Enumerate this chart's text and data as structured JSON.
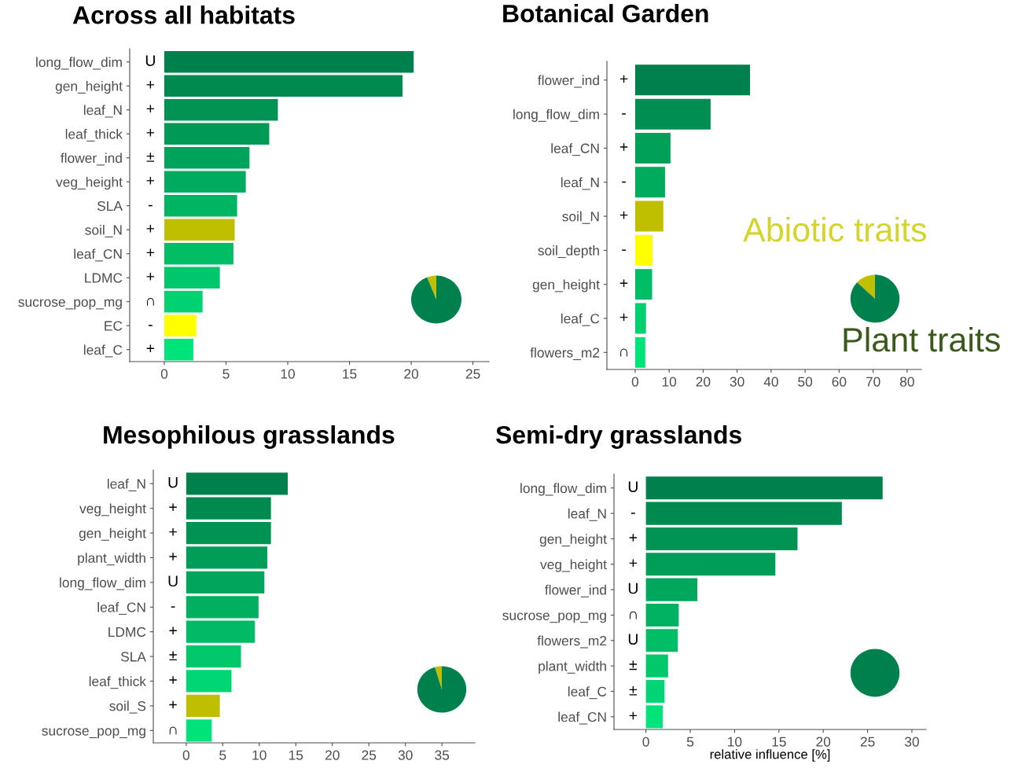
{
  "chart_data": [
    {
      "type": "bar",
      "orientation": "horizontal",
      "title": "Across all habitats",
      "categories": [
        "long_flow_dim",
        "gen_height",
        "leaf_N",
        "leaf_thick",
        "flower_ind",
        "veg_height",
        "SLA",
        "soil_N",
        "leaf_CN",
        "LDMC",
        "sucrose_pop_mg",
        "EC",
        "leaf_C"
      ],
      "values": [
        20.2,
        19.3,
        9.2,
        8.5,
        6.9,
        6.6,
        5.9,
        5.7,
        5.6,
        4.5,
        3.1,
        2.6,
        2.35
      ],
      "colors": [
        "#00804c",
        "#008a50",
        "#009354",
        "#009a57",
        "#00a35b",
        "#00aa5e",
        "#00b562",
        "#bfbf00",
        "#00bd66",
        "#00c76b",
        "#00d271",
        "#ffff00",
        "#00e37b"
      ],
      "value_labels": [
        "U",
        "+",
        "+",
        "+",
        "±",
        "+",
        "-",
        "+",
        "+",
        "+",
        "∩",
        "-",
        "+"
      ],
      "xlim": [
        -2.8,
        26.3
      ],
      "xticks": [
        0,
        5,
        10,
        15,
        20,
        25
      ],
      "grid": false,
      "legend": false
    },
    {
      "type": "pie",
      "categories": [
        null,
        null
      ],
      "values": [
        6,
        94
      ],
      "colors": [
        "#bfbf00",
        "#00804c"
      ]
    },
    {
      "type": "bar",
      "orientation": "horizontal",
      "title": "Botanical Garden",
      "categories": [
        "flower_ind",
        "long_flow_dim",
        "leaf_CN",
        "leaf_N",
        "soil_N",
        "soil_depth",
        "gen_height",
        "leaf_C",
        "flowers_m2"
      ],
      "values": [
        33.8,
        22.2,
        10.4,
        8.8,
        8.3,
        5.1,
        5.0,
        3.2,
        3.0
      ],
      "colors": [
        "#00804c",
        "#008e52",
        "#00a059",
        "#00ab5e",
        "#bfbf00",
        "#ffff00",
        "#00bd66",
        "#00d070",
        "#00e37b"
      ],
      "value_labels": [
        "+",
        "-",
        "+",
        "-",
        "+",
        "-",
        "+",
        "+",
        "∩"
      ],
      "xlim": [
        -8.3,
        84.2
      ],
      "xticks": [
        0,
        10,
        20,
        30,
        40,
        50,
        60,
        70,
        80
      ],
      "grid": false,
      "legend": false
    },
    {
      "type": "pie",
      "categories": [
        "Abiotic traits",
        "Plant traits"
      ],
      "values": [
        13,
        87
      ],
      "colors": [
        "#bfbf00",
        "#00804c"
      ]
    },
    {
      "type": "bar",
      "orientation": "horizontal",
      "title": "Mesophilous grasslands",
      "categories": [
        "leaf_N",
        "veg_height",
        "gen_height",
        "plant_width",
        "long_flow_dim",
        "leaf_CN",
        "LDMC",
        "SLA",
        "leaf_thick",
        "soil_S",
        "sucrose_pop_mg"
      ],
      "values": [
        13.9,
        11.6,
        11.6,
        11.1,
        10.7,
        9.9,
        9.4,
        7.5,
        6.2,
        4.6,
        3.5
      ],
      "colors": [
        "#00804c",
        "#008a50",
        "#009354",
        "#009d58",
        "#00a65c",
        "#00b060",
        "#00ba65",
        "#00c86b",
        "#00d674",
        "#bfbf00",
        "#00e37b"
      ],
      "value_labels": [
        "U",
        "+",
        "+",
        "+",
        "U",
        "-",
        "+",
        "±",
        "+",
        "+",
        "∩"
      ],
      "xlim": [
        -4.5,
        39.5
      ],
      "xticks": [
        0,
        5,
        10,
        15,
        20,
        25,
        30,
        35
      ],
      "grid": false,
      "legend": false
    },
    {
      "type": "pie",
      "categories": [
        null,
        null
      ],
      "values": [
        4.6,
        95.4
      ],
      "colors": [
        "#bfbf00",
        "#00804c"
      ]
    },
    {
      "type": "bar",
      "orientation": "horizontal",
      "title": "Semi-dry grasslands",
      "xlabel": "relative influence [%]",
      "categories": [
        "long_flow_dim",
        "leaf_N",
        "gen_height",
        "veg_height",
        "flower_ind",
        "sucrose_pop_mg",
        "flowers_m2",
        "plant_width",
        "leaf_C",
        "leaf_CN"
      ],
      "values": [
        26.7,
        22.1,
        17.1,
        14.6,
        5.8,
        3.7,
        3.6,
        2.5,
        2.1,
        1.9
      ],
      "colors": [
        "#00804c",
        "#008a50",
        "#009354",
        "#009d58",
        "#00a75c",
        "#00b261",
        "#00bd66",
        "#00c86b",
        "#00d474",
        "#00e37b"
      ],
      "value_labels": [
        "U",
        "-",
        "+",
        "+",
        "U",
        "∩",
        "U",
        "±",
        "±",
        "+"
      ],
      "xlim": [
        -3.6,
        31.6
      ],
      "xticks": [
        0,
        5,
        10,
        15,
        20,
        25,
        30
      ],
      "grid": false,
      "legend": false
    },
    {
      "type": "pie",
      "categories": [
        null,
        null
      ],
      "values": [
        0,
        100
      ],
      "colors": [
        "#bfbf00",
        "#00804c"
      ]
    }
  ]
}
